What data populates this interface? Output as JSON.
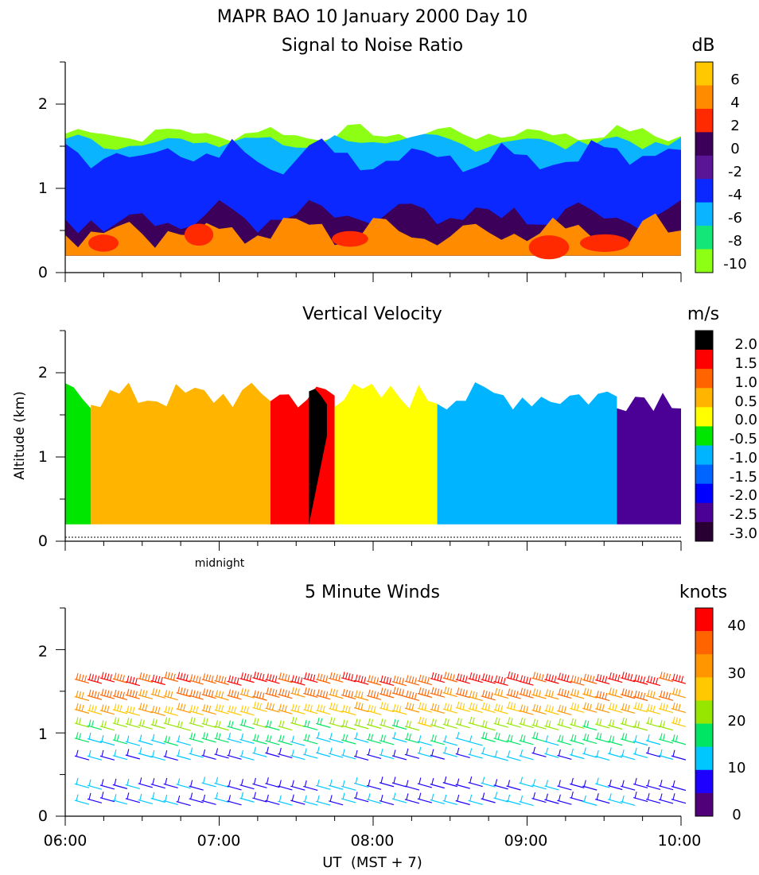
{
  "header": {
    "title": "MAPR BAO 10 January 2000  Day  10"
  },
  "common": {
    "ylabel": "Altitude (km)",
    "xlabel": "UT  (MST + 7)",
    "x_tick_labels": [
      "06:00",
      "07:00",
      "08:00",
      "09:00",
      "10:00"
    ],
    "midnight_label": "midnight"
  },
  "chart_data": [
    {
      "type": "heatmap",
      "title": "Signal to Noise Ratio",
      "unit": "dB",
      "xlim": [
        "06:00",
        "10:00"
      ],
      "ylim": [
        0,
        2.5
      ],
      "y_tick_labels": [
        "0",
        "1",
        "2"
      ],
      "colorbar": {
        "labels": [
          "6",
          "4",
          "2",
          "0",
          "-2",
          "-4",
          "-6",
          "-8",
          "-10"
        ],
        "colors": [
          "#ffc800",
          "#ff8c00",
          "#ff2a00",
          "#3c005a",
          "#5a1496",
          "#0a28ff",
          "#0ab4ff",
          "#14e678",
          "#8cff14"
        ]
      },
      "layers_km": [
        {
          "level_db": -10,
          "top_km": 1.65
        },
        {
          "level_db": -6,
          "top_km": 1.55
        },
        {
          "level_db": -4,
          "top_km": 1.4
        },
        {
          "level_db": 0,
          "top_km": 0.65
        },
        {
          "level_db": 4,
          "top_km": 0.5
        }
      ],
      "data_bottom_km": 0.2
    },
    {
      "type": "heatmap",
      "title": "Vertical Velocity",
      "unit": "m/s",
      "xlim": [
        "06:00",
        "10:00"
      ],
      "ylim": [
        0,
        2.5
      ],
      "y_tick_labels": [
        "0",
        "1",
        "2"
      ],
      "colorbar": {
        "labels": [
          "2.0",
          "1.5",
          "1.0",
          "0.5",
          "0.0",
          "-0.5",
          "-1.0",
          "-1.5",
          "-2.0",
          "-2.5",
          "-3.0"
        ],
        "colors": [
          "#000000",
          "#ff0000",
          "#ff6400",
          "#ffb400",
          "#ffff00",
          "#00e600",
          "#00b4ff",
          "#0064ff",
          "#0000ff",
          "#4b0096",
          "#280032"
        ]
      },
      "regions": [
        {
          "from": "06:00",
          "to": "06:10",
          "value_ms": -0.5
        },
        {
          "from": "06:10",
          "to": "07:20",
          "value_ms": 0.5
        },
        {
          "from": "07:20",
          "to": "07:45",
          "value_ms": 1.5
        },
        {
          "from": "07:35",
          "to": "07:42",
          "value_ms": 2.0
        },
        {
          "from": "07:45",
          "to": "08:25",
          "value_ms": 0.0
        },
        {
          "from": "08:25",
          "to": "09:35",
          "value_ms": -1.0
        },
        {
          "from": "09:35",
          "to": "10:00",
          "value_ms": -2.5
        }
      ],
      "data_bottom_km": 0.2
    },
    {
      "type": "scatter",
      "title": "5 Minute Winds",
      "unit": "knots",
      "xlim": [
        "06:00",
        "10:00"
      ],
      "ylim": [
        0,
        2.5
      ],
      "y_tick_labels": [
        "0",
        "1",
        "2"
      ],
      "colorbar": {
        "labels": [
          "40",
          "30",
          "20",
          "10",
          "0"
        ],
        "colors": [
          "#ff0000",
          "#ff6400",
          "#ff9600",
          "#ffc800",
          "#96e600",
          "#00e664",
          "#00c8ff",
          "#1e00ff",
          "#500078"
        ],
        "level_values_knots": [
          45,
          40,
          35,
          30,
          25,
          20,
          15,
          10,
          5,
          0
        ]
      },
      "speed_by_height_knots": [
        {
          "height_km": 0.3,
          "speed_knots": 10
        },
        {
          "height_km": 0.6,
          "speed_knots": 8
        },
        {
          "height_km": 0.9,
          "speed_knots": 15
        },
        {
          "height_km": 1.1,
          "speed_knots": 22
        },
        {
          "height_km": 1.3,
          "speed_knots": 30
        },
        {
          "height_km": 1.5,
          "speed_knots": 37
        },
        {
          "height_km": 1.7,
          "speed_knots": 42
        }
      ]
    }
  ]
}
